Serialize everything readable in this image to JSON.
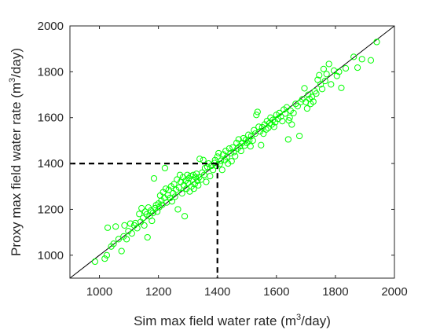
{
  "chart_data": {
    "type": "scatter",
    "xlabel": {
      "pre": "Sim max field water rate (m",
      "sup": "3",
      "post": "/day)"
    },
    "ylabel": {
      "pre": "Proxy max field water rate (m",
      "sup": "3",
      "post": "/day)"
    },
    "xlim": [
      900,
      2000
    ],
    "ylim": [
      900,
      2000
    ],
    "xticks": [
      1000,
      1200,
      1400,
      1600,
      1800,
      2000
    ],
    "yticks": [
      1000,
      1200,
      1400,
      1600,
      1800,
      2000
    ],
    "grid": false,
    "box": true,
    "marker_color": "#00ff00",
    "reference_line": {
      "from": [
        900,
        900
      ],
      "to": [
        2000,
        2000
      ],
      "color": "#000000"
    },
    "threshold": {
      "x": 1400,
      "y": 1400,
      "style": "dashed",
      "color": "#000000"
    },
    "points": [
      [
        985,
        972
      ],
      [
        1018,
        985
      ],
      [
        1025,
        1000
      ],
      [
        1028,
        1120
      ],
      [
        1040,
        1038
      ],
      [
        1048,
        1050
      ],
      [
        1055,
        1125
      ],
      [
        1065,
        1070
      ],
      [
        1075,
        1018
      ],
      [
        1082,
        1082
      ],
      [
        1085,
        1130
      ],
      [
        1092,
        1070
      ],
      [
        1098,
        1105
      ],
      [
        1105,
        1138
      ],
      [
        1110,
        1095
      ],
      [
        1118,
        1130
      ],
      [
        1122,
        1140
      ],
      [
        1128,
        1118
      ],
      [
        1135,
        1180
      ],
      [
        1140,
        1145
      ],
      [
        1143,
        1205
      ],
      [
        1148,
        1162
      ],
      [
        1152,
        1130
      ],
      [
        1155,
        1190
      ],
      [
        1160,
        1178
      ],
      [
        1163,
        1078
      ],
      [
        1166,
        1208
      ],
      [
        1170,
        1170
      ],
      [
        1175,
        1195
      ],
      [
        1178,
        1150
      ],
      [
        1182,
        1185
      ],
      [
        1185,
        1335
      ],
      [
        1188,
        1205
      ],
      [
        1192,
        1218
      ],
      [
        1196,
        1190
      ],
      [
        1200,
        1225
      ],
      [
        1203,
        1210
      ],
      [
        1206,
        1260
      ],
      [
        1210,
        1238
      ],
      [
        1213,
        1220
      ],
      [
        1216,
        1275
      ],
      [
        1220,
        1250
      ],
      [
        1222,
        1380
      ],
      [
        1225,
        1290
      ],
      [
        1228,
        1230
      ],
      [
        1232,
        1262
      ],
      [
        1235,
        1285
      ],
      [
        1240,
        1250
      ],
      [
        1243,
        1300
      ],
      [
        1246,
        1235
      ],
      [
        1250,
        1270
      ],
      [
        1253,
        1310
      ],
      [
        1256,
        1255
      ],
      [
        1260,
        1285
      ],
      [
        1263,
        1330
      ],
      [
        1266,
        1200
      ],
      [
        1270,
        1295
      ],
      [
        1273,
        1350
      ],
      [
        1276,
        1320
      ],
      [
        1280,
        1270
      ],
      [
        1283,
        1340
      ],
      [
        1286,
        1305
      ],
      [
        1289,
        1170
      ],
      [
        1292,
        1325
      ],
      [
        1295,
        1290
      ],
      [
        1298,
        1350
      ],
      [
        1300,
        1315
      ],
      [
        1303,
        1335
      ],
      [
        1306,
        1278
      ],
      [
        1309,
        1345
      ],
      [
        1312,
        1300
      ],
      [
        1315,
        1330
      ],
      [
        1318,
        1350
      ],
      [
        1320,
        1290
      ],
      [
        1323,
        1310
      ],
      [
        1326,
        1340
      ],
      [
        1329,
        1355
      ],
      [
        1332,
        1325
      ],
      [
        1335,
        1305
      ],
      [
        1338,
        1340
      ],
      [
        1340,
        1420
      ],
      [
        1345,
        1330
      ],
      [
        1348,
        1360
      ],
      [
        1352,
        1415
      ],
      [
        1355,
        1350
      ],
      [
        1358,
        1380
      ],
      [
        1362,
        1320
      ],
      [
        1366,
        1385
      ],
      [
        1370,
        1400
      ],
      [
        1375,
        1345
      ],
      [
        1380,
        1390
      ],
      [
        1385,
        1372
      ],
      [
        1390,
        1402
      ],
      [
        1392,
        1415
      ],
      [
        1396,
        1390
      ],
      [
        1400,
        1430
      ],
      [
        1404,
        1445
      ],
      [
        1408,
        1398
      ],
      [
        1412,
        1412
      ],
      [
        1416,
        1372
      ],
      [
        1420,
        1440
      ],
      [
        1425,
        1415
      ],
      [
        1428,
        1455
      ],
      [
        1432,
        1428
      ],
      [
        1436,
        1400
      ],
      [
        1440,
        1465
      ],
      [
        1445,
        1445
      ],
      [
        1448,
        1410
      ],
      [
        1452,
        1470
      ],
      [
        1456,
        1450
      ],
      [
        1460,
        1432
      ],
      [
        1465,
        1490
      ],
      [
        1468,
        1465
      ],
      [
        1472,
        1505
      ],
      [
        1476,
        1475
      ],
      [
        1480,
        1455
      ],
      [
        1484,
        1490
      ],
      [
        1488,
        1510
      ],
      [
        1492,
        1478
      ],
      [
        1496,
        1502
      ],
      [
        1500,
        1490
      ],
      [
        1505,
        1525
      ],
      [
        1508,
        1500
      ],
      [
        1512,
        1475
      ],
      [
        1515,
        1520
      ],
      [
        1520,
        1500
      ],
      [
        1524,
        1545
      ],
      [
        1528,
        1530
      ],
      [
        1532,
        1612
      ],
      [
        1536,
        1625
      ],
      [
        1540,
        1560
      ],
      [
        1545,
        1540
      ],
      [
        1548,
        1480
      ],
      [
        1552,
        1558
      ],
      [
        1556,
        1530
      ],
      [
        1560,
        1570
      ],
      [
        1565,
        1548
      ],
      [
        1568,
        1585
      ],
      [
        1572,
        1555
      ],
      [
        1576,
        1575
      ],
      [
        1580,
        1600
      ],
      [
        1584,
        1570
      ],
      [
        1588,
        1590
      ],
      [
        1592,
        1560
      ],
      [
        1596,
        1580
      ],
      [
        1600,
        1612
      ],
      [
        1605,
        1595
      ],
      [
        1610,
        1620
      ],
      [
        1615,
        1605
      ],
      [
        1620,
        1585
      ],
      [
        1625,
        1635
      ],
      [
        1630,
        1618
      ],
      [
        1635,
        1645
      ],
      [
        1640,
        1505
      ],
      [
        1642,
        1588
      ],
      [
        1645,
        1600
      ],
      [
        1648,
        1630
      ],
      [
        1652,
        1570
      ],
      [
        1658,
        1620
      ],
      [
        1665,
        1660
      ],
      [
        1672,
        1650
      ],
      [
        1678,
        1520
      ],
      [
        1682,
        1668
      ],
      [
        1688,
        1680
      ],
      [
        1695,
        1728
      ],
      [
        1700,
        1668
      ],
      [
        1704,
        1640
      ],
      [
        1708,
        1700
      ],
      [
        1712,
        1682
      ],
      [
        1716,
        1660
      ],
      [
        1720,
        1690
      ],
      [
        1725,
        1670
      ],
      [
        1730,
        1715
      ],
      [
        1735,
        1705
      ],
      [
        1740,
        1765
      ],
      [
        1745,
        1785
      ],
      [
        1750,
        1745
      ],
      [
        1755,
        1725
      ],
      [
        1760,
        1812
      ],
      [
        1765,
        1760
      ],
      [
        1770,
        1790
      ],
      [
        1778,
        1834
      ],
      [
        1785,
        1745
      ],
      [
        1795,
        1805
      ],
      [
        1805,
        1782
      ],
      [
        1812,
        1800
      ],
      [
        1820,
        1730
      ],
      [
        1835,
        1815
      ],
      [
        1862,
        1865
      ],
      [
        1875,
        1818
      ],
      [
        1890,
        1855
      ],
      [
        1920,
        1850
      ],
      [
        1940,
        1930
      ]
    ]
  }
}
